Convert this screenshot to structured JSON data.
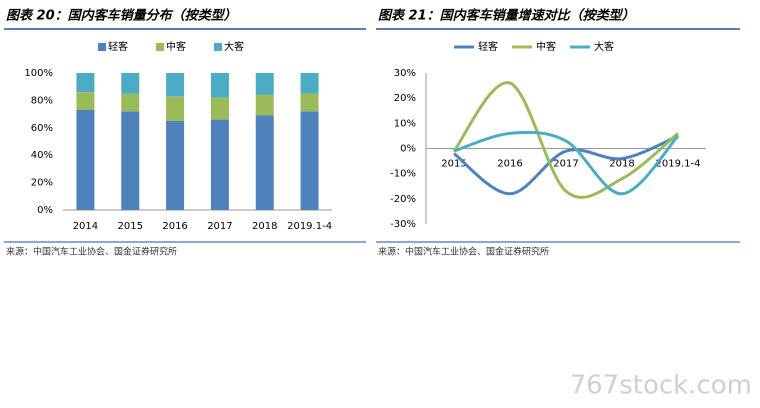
{
  "chart_data": [
    {
      "type": "stacked-bar",
      "title": "图表 20：国内客车销量分布（按类型）",
      "categories": [
        "2014",
        "2015",
        "2016",
        "2017",
        "2018",
        "2019.1-4"
      ],
      "series": [
        {
          "name": "轻客",
          "color": "#4f81bd",
          "values": [
            73,
            72,
            65,
            66,
            69,
            72
          ]
        },
        {
          "name": "中客",
          "color": "#9bbb59",
          "values": [
            13,
            13,
            18,
            16,
            15,
            13
          ]
        },
        {
          "name": "大客",
          "color": "#4bacc6",
          "values": [
            14,
            15,
            17,
            18,
            16,
            15
          ]
        }
      ],
      "ylim": [
        0,
        100
      ],
      "yticks": [
        {
          "value": 0,
          "label": "0%"
        },
        {
          "value": 20,
          "label": "20%"
        },
        {
          "value": 40,
          "label": "40%"
        },
        {
          "value": 60,
          "label": "60%"
        },
        {
          "value": 80,
          "label": "80%"
        },
        {
          "value": 100,
          "label": "100%"
        }
      ],
      "legend": "top",
      "source": "来源：中国汽车工业协会、国金证券研究所"
    },
    {
      "type": "line",
      "title": "图表 21：国内客车销量增速对比（按类型）",
      "categories": [
        "2015",
        "2016",
        "2017",
        "2018",
        "2019.1-4"
      ],
      "series": [
        {
          "name": "轻客",
          "color": "#4f81bd",
          "values": [
            -2,
            -18,
            -1,
            -4,
            5
          ]
        },
        {
          "name": "中客",
          "color": "#9bbb59",
          "values": [
            -1,
            26,
            -17,
            -12,
            6
          ]
        },
        {
          "name": "大客",
          "color": "#4bacc6",
          "values": [
            -1,
            6,
            3,
            -18,
            5
          ]
        }
      ],
      "ylim": [
        -30,
        30
      ],
      "yticks": [
        {
          "value": -30,
          "label": "-30%"
        },
        {
          "value": -20,
          "label": "-20%"
        },
        {
          "value": -10,
          "label": "-10%"
        },
        {
          "value": 0,
          "label": "0%"
        },
        {
          "value": 10,
          "label": "10%"
        },
        {
          "value": 20,
          "label": "20%"
        },
        {
          "value": 30,
          "label": "30%"
        }
      ],
      "legend": "top",
      "source": "来源：中国汽车工业协会、国金证券研究所"
    }
  ],
  "watermark": "767stock.com"
}
